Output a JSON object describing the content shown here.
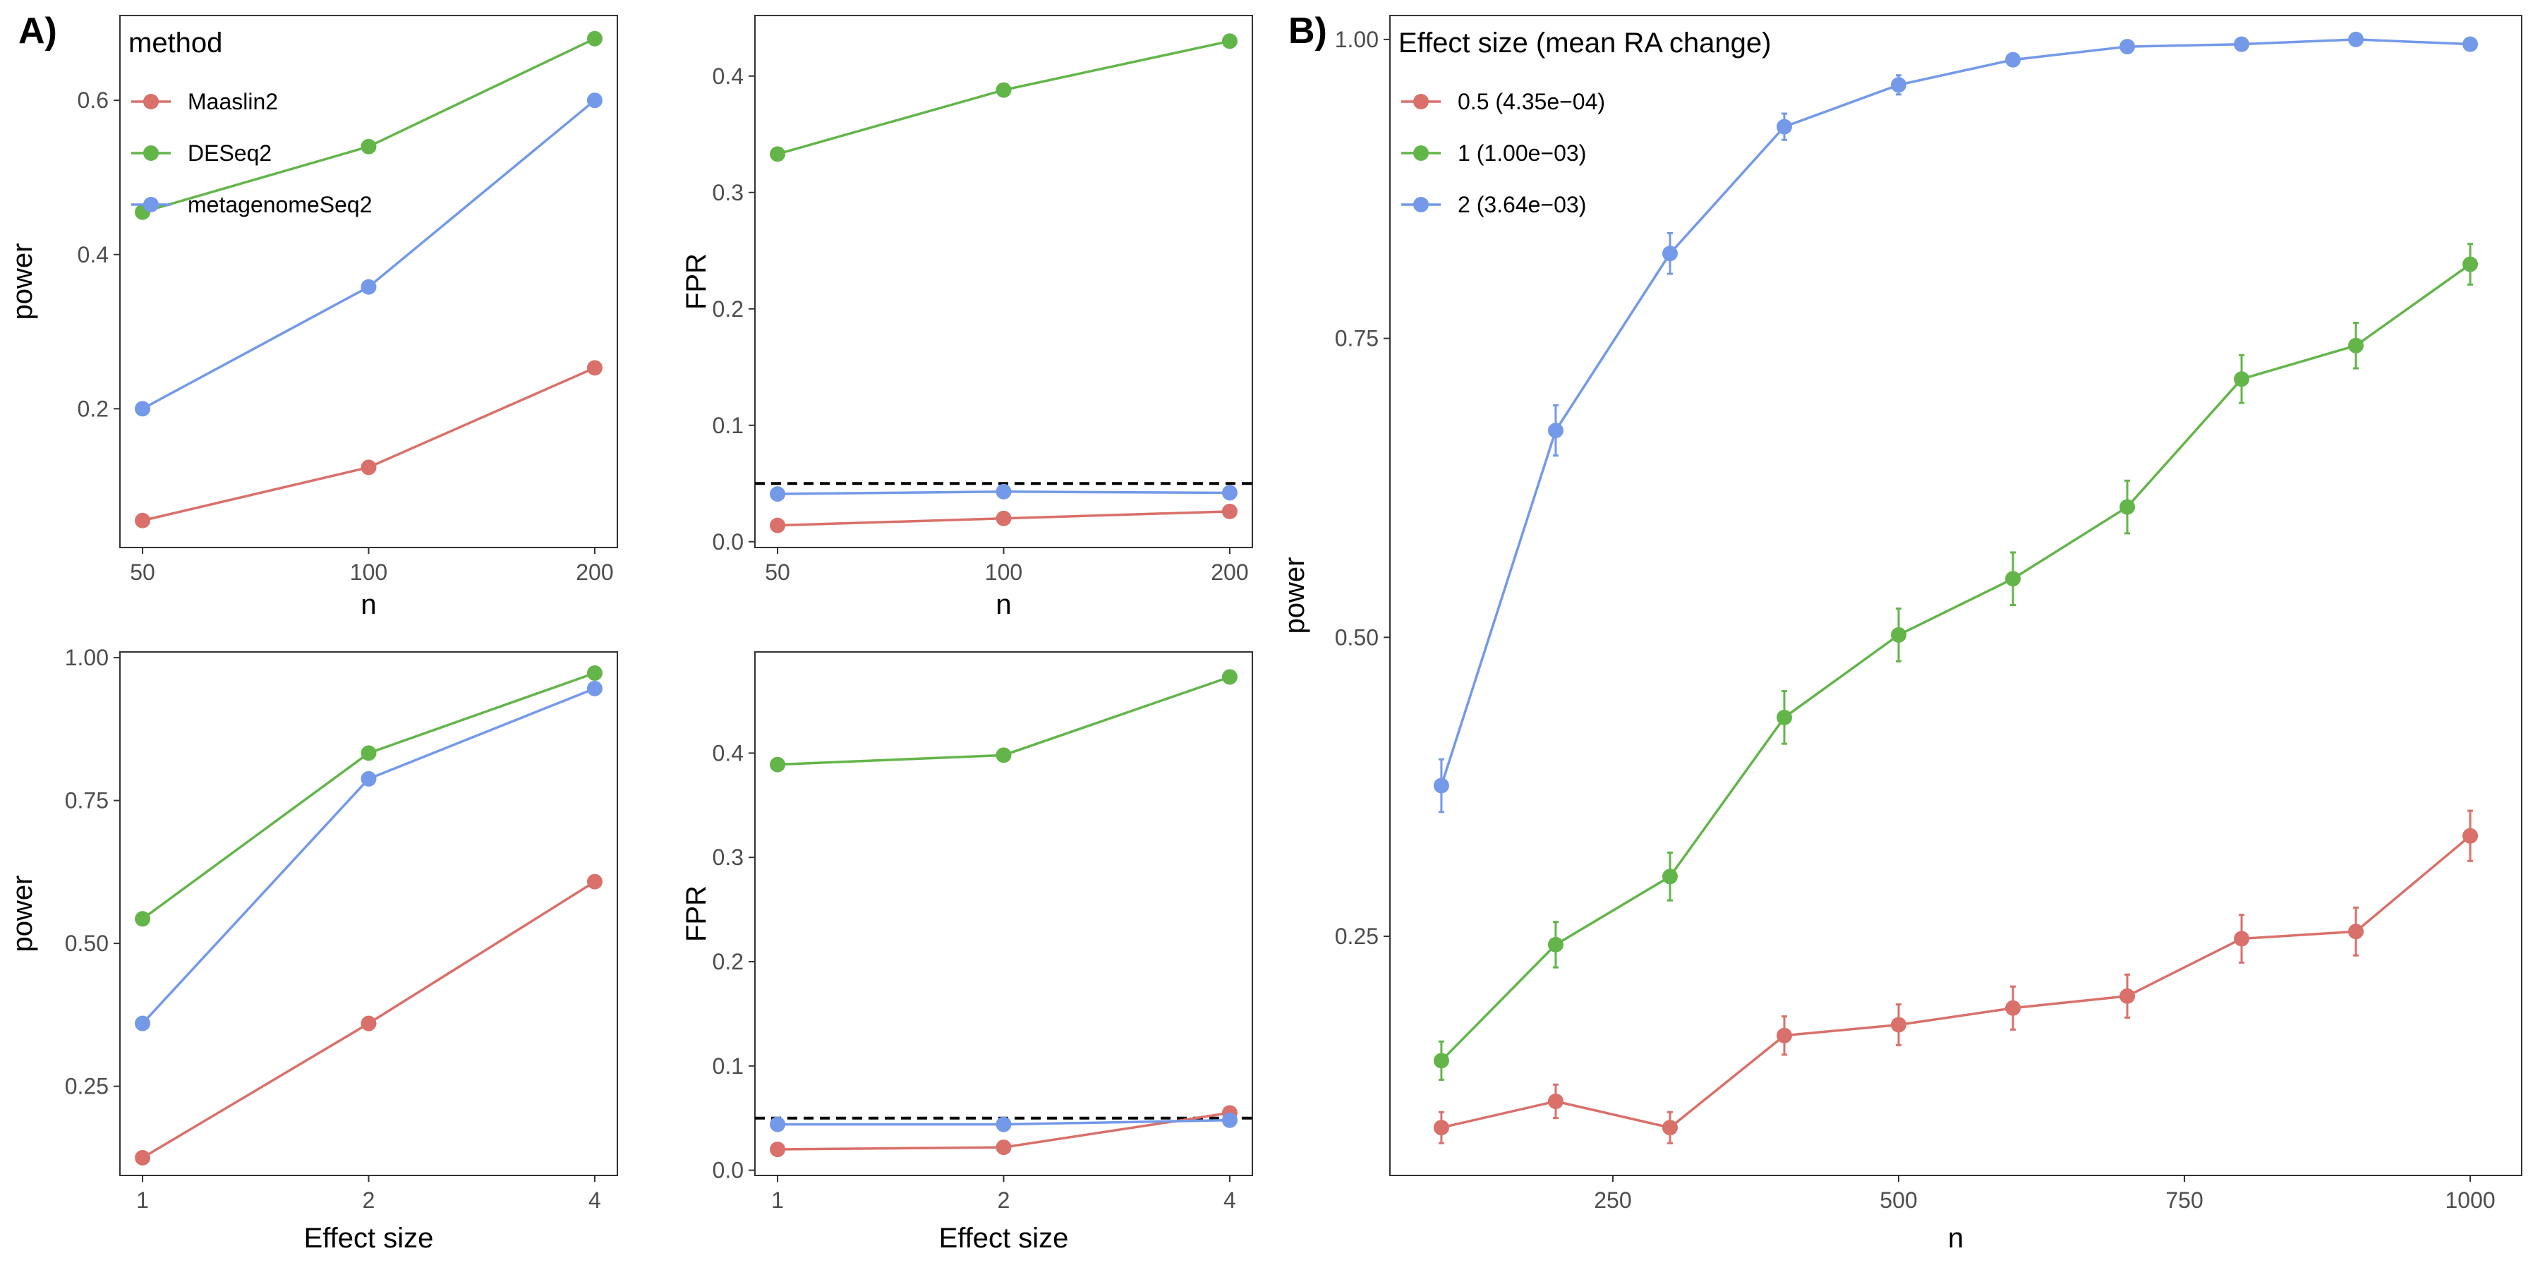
{
  "panel_labels": {
    "a": "A)",
    "b": "B)"
  },
  "colors": {
    "red": "#D9706A",
    "green": "#63B54A",
    "blue": "#7399E8",
    "reference_line": "#000000",
    "panel_border": "#333333"
  },
  "chart_data": [
    {
      "id": "a1",
      "type": "line",
      "xlabel": "n",
      "ylabel": "power",
      "x_scale": "log2",
      "x": [
        50,
        100,
        200
      ],
      "x_ticks": [
        50,
        100,
        200
      ],
      "y_ticks": [
        0.2,
        0.4,
        0.6
      ],
      "ylim": [
        0.02,
        0.71
      ],
      "series": [
        {
          "name": "Maaslin2",
          "color": "#D9706A",
          "values": [
            0.055,
            0.124,
            0.253
          ]
        },
        {
          "name": "DESeq2",
          "color": "#63B54A",
          "values": [
            0.455,
            0.54,
            0.68
          ]
        },
        {
          "name": "metagenomeSeq2",
          "color": "#7399E8",
          "values": [
            0.2,
            0.358,
            0.6
          ]
        }
      ],
      "legend": {
        "title": "method",
        "position": "top-left",
        "entries": [
          "Maaslin2",
          "DESeq2",
          "metagenomeSeq2"
        ]
      },
      "grid": false
    },
    {
      "id": "a2",
      "type": "line",
      "xlabel": "n",
      "ylabel": "FPR",
      "x_scale": "log2",
      "x": [
        50,
        100,
        200
      ],
      "x_ticks": [
        50,
        100,
        200
      ],
      "y_ticks": [
        0.0,
        0.1,
        0.2,
        0.3,
        0.4
      ],
      "ylim": [
        -0.005,
        0.452
      ],
      "reference_line": 0.05,
      "series": [
        {
          "name": "Maaslin2",
          "color": "#D9706A",
          "values": [
            0.014,
            0.02,
            0.026
          ]
        },
        {
          "name": "DESeq2",
          "color": "#63B54A",
          "values": [
            0.333,
            0.388,
            0.43
          ]
        },
        {
          "name": "metagenomeSeq2",
          "color": "#7399E8",
          "values": [
            0.041,
            0.043,
            0.042
          ]
        }
      ],
      "grid": false
    },
    {
      "id": "a3",
      "type": "line",
      "xlabel": "Effect size",
      "ylabel": "power",
      "x_scale": "log2",
      "x": [
        1,
        2,
        4
      ],
      "x_ticks": [
        1,
        2,
        4
      ],
      "y_ticks": [
        0.25,
        0.5,
        0.75,
        1.0
      ],
      "ylim": [
        0.094,
        1.01
      ],
      "series": [
        {
          "name": "Maaslin2",
          "color": "#D9706A",
          "values": [
            0.125,
            0.36,
            0.608
          ]
        },
        {
          "name": "DESeq2",
          "color": "#63B54A",
          "values": [
            0.543,
            0.833,
            0.973
          ]
        },
        {
          "name": "metagenomeSeq2",
          "color": "#7399E8",
          "values": [
            0.36,
            0.788,
            0.946
          ]
        }
      ],
      "grid": false
    },
    {
      "id": "a4",
      "type": "line",
      "xlabel": "Effect size",
      "ylabel": "FPR",
      "x_scale": "log2",
      "x": [
        1,
        2,
        4
      ],
      "x_ticks": [
        1,
        2,
        4
      ],
      "y_ticks": [
        0.0,
        0.1,
        0.2,
        0.3,
        0.4
      ],
      "ylim": [
        -0.005,
        0.497
      ],
      "reference_line": 0.05,
      "series": [
        {
          "name": "Maaslin2",
          "color": "#D9706A",
          "values": [
            0.02,
            0.022,
            0.055
          ]
        },
        {
          "name": "DESeq2",
          "color": "#63B54A",
          "values": [
            0.389,
            0.398,
            0.473
          ]
        },
        {
          "name": "metagenomeSeq2",
          "color": "#7399E8",
          "values": [
            0.044,
            0.044,
            0.048
          ]
        }
      ],
      "grid": false
    },
    {
      "id": "b",
      "type": "line",
      "xlabel": "n",
      "ylabel": "power",
      "x_scale": "linear",
      "x": [
        100,
        200,
        300,
        400,
        500,
        600,
        700,
        800,
        900,
        1000
      ],
      "x_ticks": [
        250,
        500,
        750,
        1000
      ],
      "xlim": [
        55,
        1045
      ],
      "y_ticks": [
        0.25,
        0.5,
        0.75,
        1.0
      ],
      "ylim": [
        0.05,
        1.02
      ],
      "series": [
        {
          "name": "0.5 (4.35e−04)",
          "color": "#D9706A",
          "values": [
            0.09,
            0.112,
            0.09,
            0.167,
            0.176,
            0.19,
            0.2,
            0.248,
            0.254,
            0.334
          ],
          "errors": [
            0.013,
            0.014,
            0.013,
            0.016,
            0.017,
            0.018,
            0.018,
            0.02,
            0.02,
            0.021
          ]
        },
        {
          "name": "1 (1.00e−03)",
          "color": "#63B54A",
          "values": [
            0.146,
            0.243,
            0.3,
            0.433,
            0.502,
            0.549,
            0.609,
            0.716,
            0.744,
            0.812
          ],
          "errors": [
            0.016,
            0.019,
            0.02,
            0.022,
            0.022,
            0.022,
            0.022,
            0.02,
            0.019,
            0.017
          ]
        },
        {
          "name": "2 (3.64e−03)",
          "color": "#7399E8",
          "values": [
            0.376,
            0.673,
            0.821,
            0.927,
            0.962,
            0.983,
            0.994,
            0.996,
            1.0,
            0.996
          ],
          "errors": [
            0.022,
            0.021,
            0.017,
            0.011,
            0.008,
            0.005,
            0.003,
            0.003,
            0.001,
            0.003
          ]
        }
      ],
      "legend": {
        "title": "Effect size (mean RA change)",
        "position": "top-left",
        "entries": [
          "0.5 (4.35e−04)",
          "1 (1.00e−03)",
          "2 (3.64e−03)"
        ]
      },
      "grid": false
    }
  ]
}
